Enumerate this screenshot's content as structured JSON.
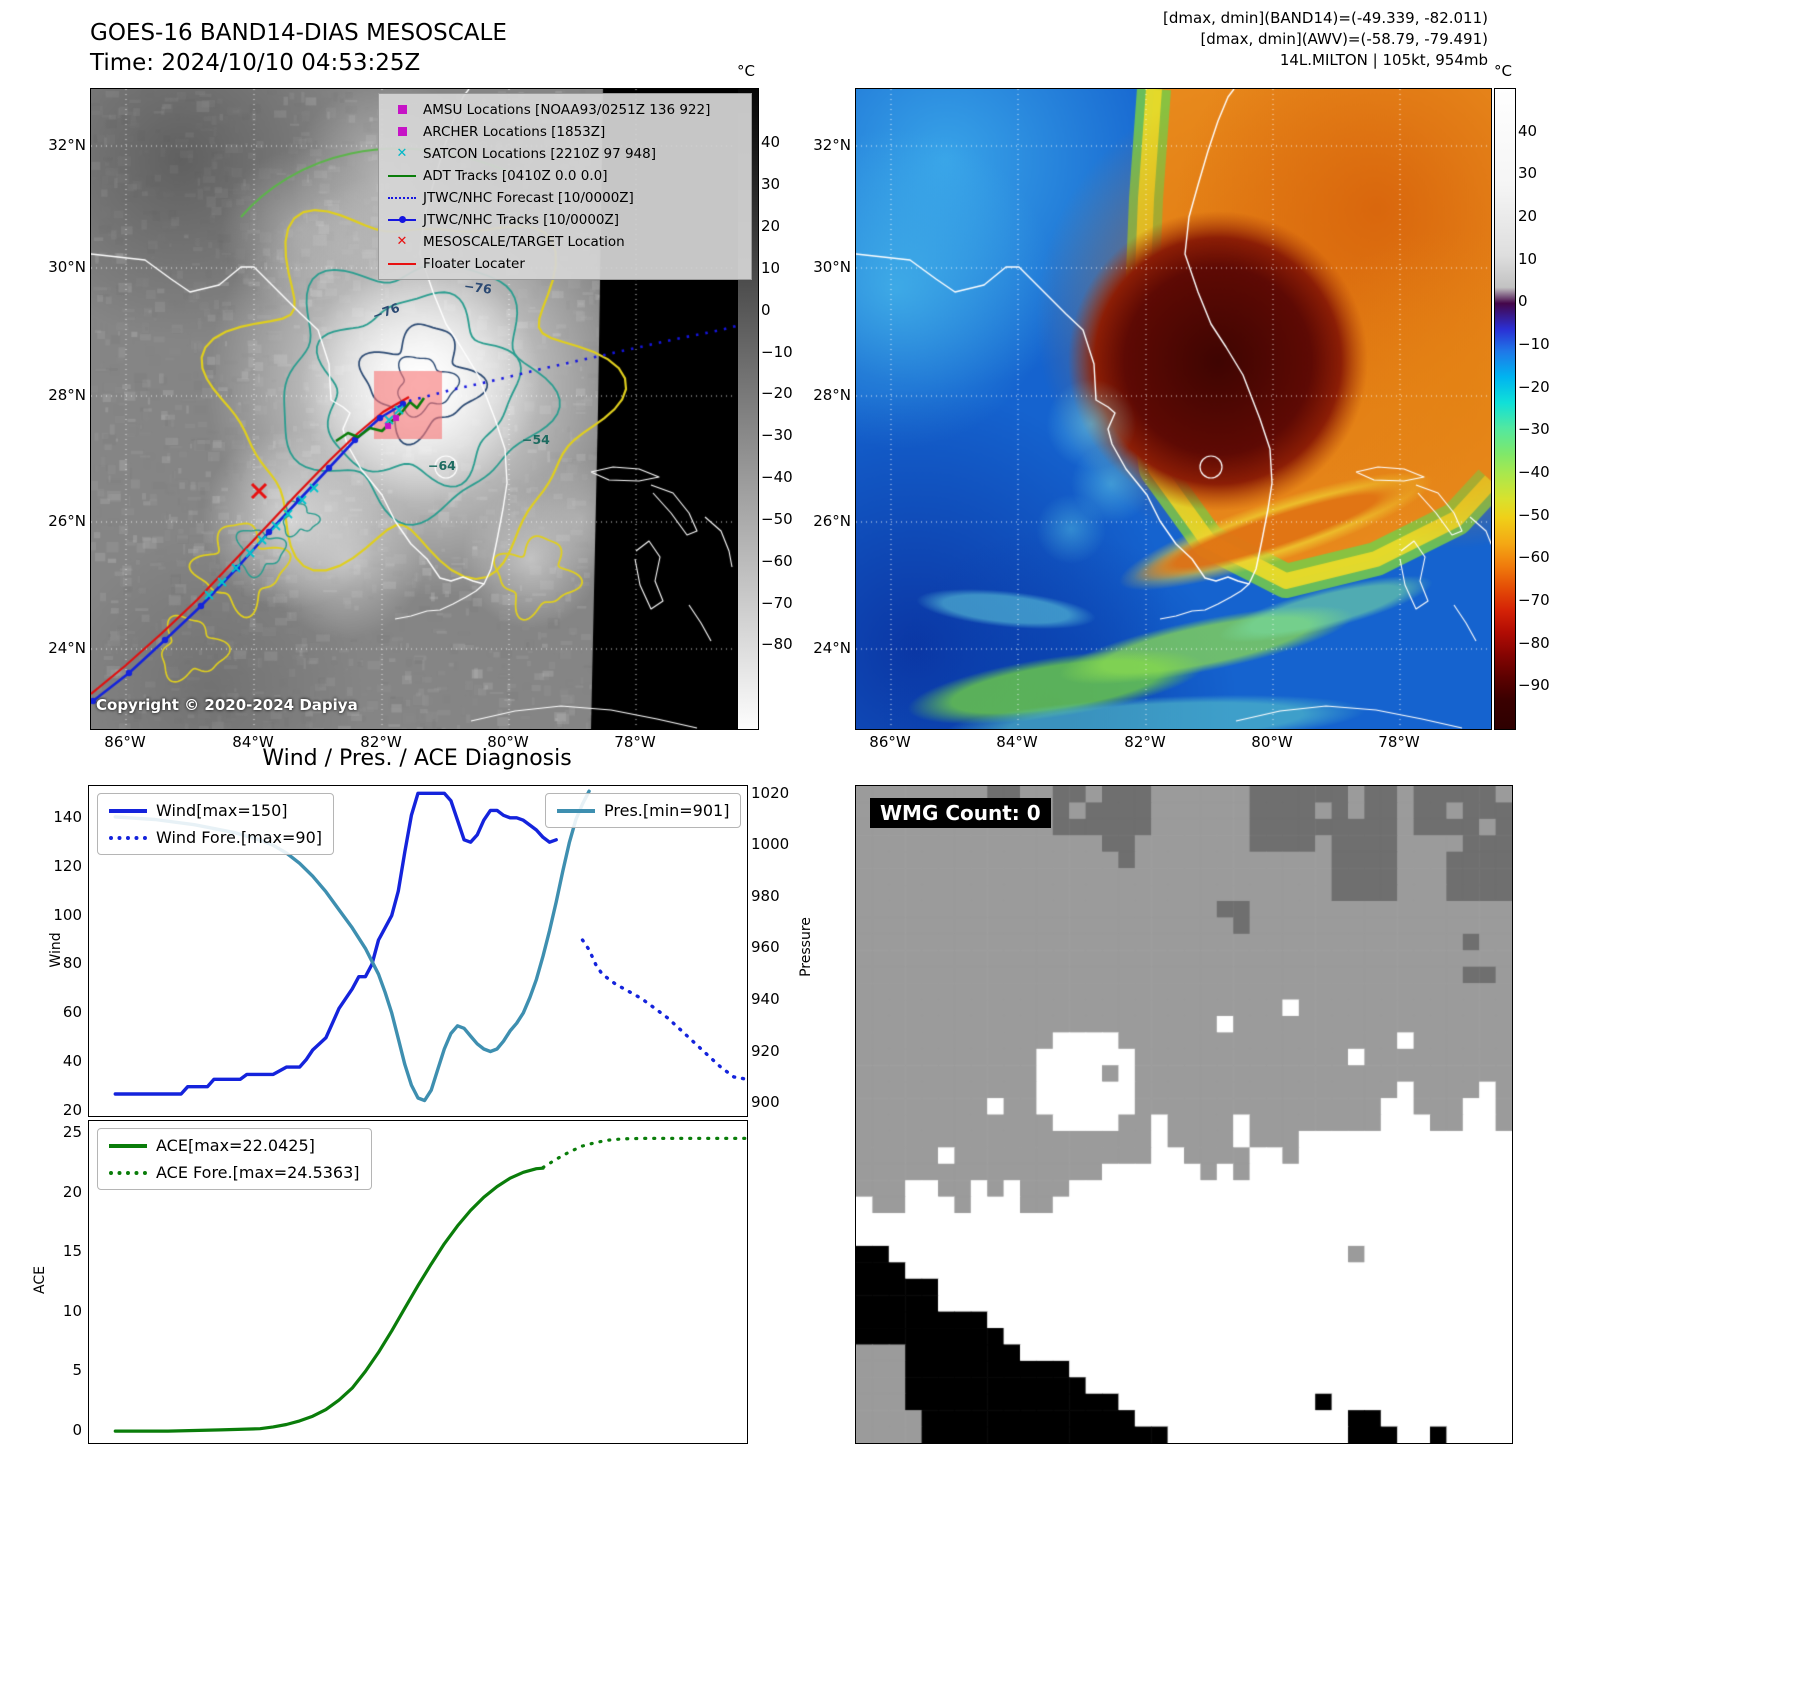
{
  "header": {
    "stats_line1": "[dmax, dmin](BAND14)=(-49.339, -82.011)",
    "stats_line2": "[dmax, dmin](AWV)=(-58.79, -79.491)",
    "stats_line3": "14L.MILTON | 105kt, 954mb"
  },
  "band14": {
    "title_line1": "GOES-16 BAND14-DIAS MESOSCALE",
    "title_line2": "Time: 2024/10/10 04:53:25Z",
    "copyright": "Copyright © 2020-2024 Dapiya",
    "lat_ticks": [
      "32°N",
      "30°N",
      "28°N",
      "26°N",
      "24°N"
    ],
    "lon_ticks": [
      "86°W",
      "84°W",
      "82°W",
      "80°W",
      "78°W"
    ],
    "colorbar_unit": "°C",
    "colorbar_ticks": [
      "40",
      "30",
      "20",
      "10",
      "0",
      "−10",
      "−20",
      "−30",
      "−40",
      "−50",
      "−60",
      "−70",
      "−80"
    ],
    "contour_labels": [
      "−76",
      "−76",
      "−54",
      "−64"
    ],
    "legend": [
      {
        "marker": "square",
        "color": "#c613c6",
        "label": "AMSU Locations [NOAA93/0251Z 136 922]"
      },
      {
        "marker": "square",
        "color": "#c613c6",
        "label": "ARCHER Locations [1853Z]"
      },
      {
        "marker": "x",
        "color": "#00b8c8",
        "label": "SATCON Locations [2210Z 97 948]"
      },
      {
        "marker": "line",
        "color": "#0a7d0a",
        "label": "ADT Tracks [0410Z 0.0 0.0]"
      },
      {
        "marker": "dotted",
        "color": "#1515e0",
        "label": "JTWC/NHC Forecast [10/0000Z]"
      },
      {
        "marker": "line-dot",
        "color": "#1515e0",
        "label": "JTWC/NHC Tracks [10/0000Z]"
      },
      {
        "marker": "x-bold",
        "color": "#e81010",
        "label": "MESOSCALE/TARGET Location"
      },
      {
        "marker": "line",
        "color": "#e81010",
        "label": "Floater Locater"
      }
    ]
  },
  "awv": {
    "lat_ticks": [
      "32°N",
      "30°N",
      "28°N",
      "26°N",
      "24°N"
    ],
    "lon_ticks": [
      "86°W",
      "84°W",
      "82°W",
      "80°W",
      "78°W"
    ],
    "colorbar_unit": "°C",
    "colorbar_ticks": [
      "40",
      "30",
      "20",
      "10",
      "0",
      "−10",
      "−20",
      "−30",
      "−40",
      "−50",
      "−60",
      "−70",
      "−80",
      "−90"
    ]
  },
  "wmg": {
    "label": "WMG Count: 0"
  },
  "chart_data": [
    {
      "type": "line",
      "title": "Wind / Pres. / ACE Diagnosis",
      "xlim": [
        0,
        100
      ],
      "ylabel_left": "Wind",
      "ylabel_right": "Pressure",
      "ylim_wind": [
        18,
        153
      ],
      "ylim_pressure": [
        895,
        1023
      ],
      "yticks_wind": [
        20,
        40,
        60,
        80,
        100,
        120,
        140
      ],
      "yticks_pressure": [
        900,
        920,
        940,
        960,
        980,
        1000,
        1020
      ],
      "legend": [
        {
          "label": "Wind[max=150]",
          "color": "#1423dc",
          "style": "solid"
        },
        {
          "label": "Wind Fore.[max=90]",
          "color": "#1423dc",
          "style": "dotted"
        },
        {
          "label": "Pres.[min=901]",
          "color": "#3e8fb0",
          "style": "solid"
        }
      ],
      "series": [
        {
          "name": "Wind",
          "axis": "wind",
          "color": "#1423dc",
          "style": "solid",
          "points": [
            [
              4,
              27
            ],
            [
              10,
              27
            ],
            [
              14,
              27
            ],
            [
              15,
              30
            ],
            [
              18,
              30
            ],
            [
              19,
              33
            ],
            [
              23,
              33
            ],
            [
              24,
              35
            ],
            [
              28,
              35
            ],
            [
              30,
              38
            ],
            [
              32,
              38
            ],
            [
              33,
              41
            ],
            [
              34,
              45
            ],
            [
              36,
              50
            ],
            [
              37,
              56
            ],
            [
              38,
              62
            ],
            [
              39,
              66
            ],
            [
              40,
              70
            ],
            [
              41,
              75
            ],
            [
              42,
              75
            ],
            [
              43,
              80
            ],
            [
              44,
              90
            ],
            [
              45,
              95
            ],
            [
              46,
              100
            ],
            [
              47,
              110
            ],
            [
              48,
              126
            ],
            [
              49,
              141
            ],
            [
              50,
              150
            ],
            [
              54,
              150
            ],
            [
              55,
              147
            ],
            [
              56,
              139
            ],
            [
              57,
              131
            ],
            [
              58,
              130
            ],
            [
              59,
              133
            ],
            [
              60,
              139
            ],
            [
              61,
              143
            ],
            [
              62,
              143
            ],
            [
              63,
              141
            ],
            [
              64,
              140
            ],
            [
              65,
              140
            ],
            [
              66,
              139
            ],
            [
              67,
              137
            ],
            [
              68,
              135
            ],
            [
              69,
              132
            ],
            [
              70,
              130
            ],
            [
              71,
              131
            ]
          ]
        },
        {
          "name": "Wind Fore.",
          "axis": "wind",
          "color": "#1423dc",
          "style": "dotted",
          "points": [
            [
              75,
              90
            ],
            [
              76,
              86
            ],
            [
              77,
              80
            ],
            [
              78,
              76
            ],
            [
              80,
              72
            ],
            [
              82,
              69
            ],
            [
              84,
              66
            ],
            [
              86,
              62
            ],
            [
              88,
              58
            ],
            [
              90,
              53
            ],
            [
              92,
              48
            ],
            [
              94,
              43
            ],
            [
              96,
              38
            ],
            [
              97,
              36
            ],
            [
              98,
              34
            ],
            [
              100,
              33
            ]
          ]
        },
        {
          "name": "Pres.",
          "axis": "pressure",
          "color": "#3e8fb0",
          "style": "solid",
          "points": [
            [
              4,
              1011
            ],
            [
              10,
              1010
            ],
            [
              16,
              1008
            ],
            [
              22,
              1005
            ],
            [
              26,
              1002
            ],
            [
              28,
              1000
            ],
            [
              30,
              997
            ],
            [
              32,
              993
            ],
            [
              34,
              988
            ],
            [
              36,
              982
            ],
            [
              38,
              975
            ],
            [
              40,
              968
            ],
            [
              42,
              960
            ],
            [
              44,
              950
            ],
            [
              45,
              943
            ],
            [
              46,
              935
            ],
            [
              47,
              925
            ],
            [
              48,
              915
            ],
            [
              49,
              907
            ],
            [
              50,
              902
            ],
            [
              51,
              901
            ],
            [
              52,
              905
            ],
            [
              53,
              913
            ],
            [
              54,
              921
            ],
            [
              55,
              927
            ],
            [
              56,
              930
            ],
            [
              57,
              929
            ],
            [
              58,
              926
            ],
            [
              59,
              923
            ],
            [
              60,
              921
            ],
            [
              61,
              920
            ],
            [
              62,
              921
            ],
            [
              63,
              924
            ],
            [
              64,
              928
            ],
            [
              65,
              931
            ],
            [
              66,
              935
            ],
            [
              67,
              941
            ],
            [
              68,
              948
            ],
            [
              69,
              957
            ],
            [
              70,
              967
            ],
            [
              71,
              978
            ],
            [
              72,
              990
            ],
            [
              73,
              1001
            ],
            [
              74,
              1010
            ],
            [
              75,
              1016
            ],
            [
              76,
              1021
            ]
          ]
        }
      ]
    },
    {
      "type": "line",
      "xlim": [
        0,
        100
      ],
      "ylabel_left": "ACE",
      "ylim": [
        -1,
        26
      ],
      "yticks": [
        0,
        5,
        10,
        15,
        20,
        25
      ],
      "legend": [
        {
          "label": "ACE[max=22.0425]",
          "color": "#0a7d0a",
          "style": "solid"
        },
        {
          "label": "ACE Fore.[max=24.5363]",
          "color": "#0a7d0a",
          "style": "dotted"
        }
      ],
      "series": [
        {
          "name": "ACE",
          "color": "#0a7d0a",
          "style": "solid",
          "points": [
            [
              4,
              0
            ],
            [
              12,
              0
            ],
            [
              20,
              0.1
            ],
            [
              26,
              0.2
            ],
            [
              28,
              0.35
            ],
            [
              30,
              0.55
            ],
            [
              32,
              0.85
            ],
            [
              34,
              1.25
            ],
            [
              36,
              1.8
            ],
            [
              38,
              2.6
            ],
            [
              40,
              3.6
            ],
            [
              42,
              5
            ],
            [
              44,
              6.6
            ],
            [
              46,
              8.4
            ],
            [
              48,
              10.3
            ],
            [
              50,
              12.2
            ],
            [
              52,
              14
            ],
            [
              54,
              15.7
            ],
            [
              56,
              17.2
            ],
            [
              58,
              18.5
            ],
            [
              60,
              19.6
            ],
            [
              62,
              20.5
            ],
            [
              64,
              21.2
            ],
            [
              66,
              21.7
            ],
            [
              68,
              22
            ],
            [
              69,
              22.04
            ]
          ]
        },
        {
          "name": "ACE Fore.",
          "color": "#0a7d0a",
          "style": "dotted",
          "points": [
            [
              69,
              22.1
            ],
            [
              71,
              22.8
            ],
            [
              73,
              23.4
            ],
            [
              75,
              23.9
            ],
            [
              77,
              24.2
            ],
            [
              79,
              24.4
            ],
            [
              81,
              24.5
            ],
            [
              84,
              24.54
            ],
            [
              88,
              24.54
            ],
            [
              92,
              24.54
            ],
            [
              96,
              24.54
            ],
            [
              100,
              24.54
            ]
          ]
        }
      ]
    }
  ]
}
